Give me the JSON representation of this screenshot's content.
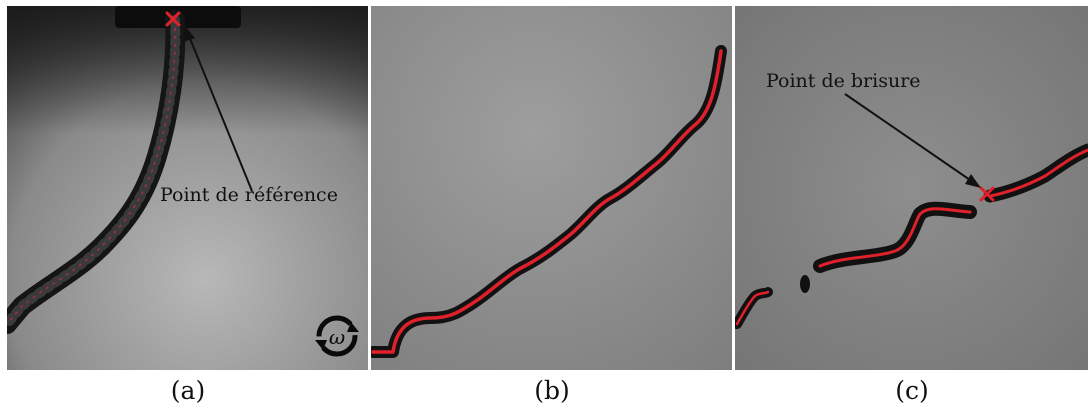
{
  "panels": [
    {
      "id": "a",
      "caption": "(a)",
      "annotation": "Point de référence"
    },
    {
      "id": "b",
      "caption": "(b)",
      "annotation": ""
    },
    {
      "id": "c",
      "caption": "(c)",
      "annotation": "Point de brisure"
    }
  ],
  "colors": {
    "trace": "#e0202a",
    "marker": "#e0202a",
    "rope": "#141414",
    "background_gray": "#8f8f8f"
  },
  "icons": [
    "rotation-omega-icon",
    "cross-marker-icon"
  ]
}
